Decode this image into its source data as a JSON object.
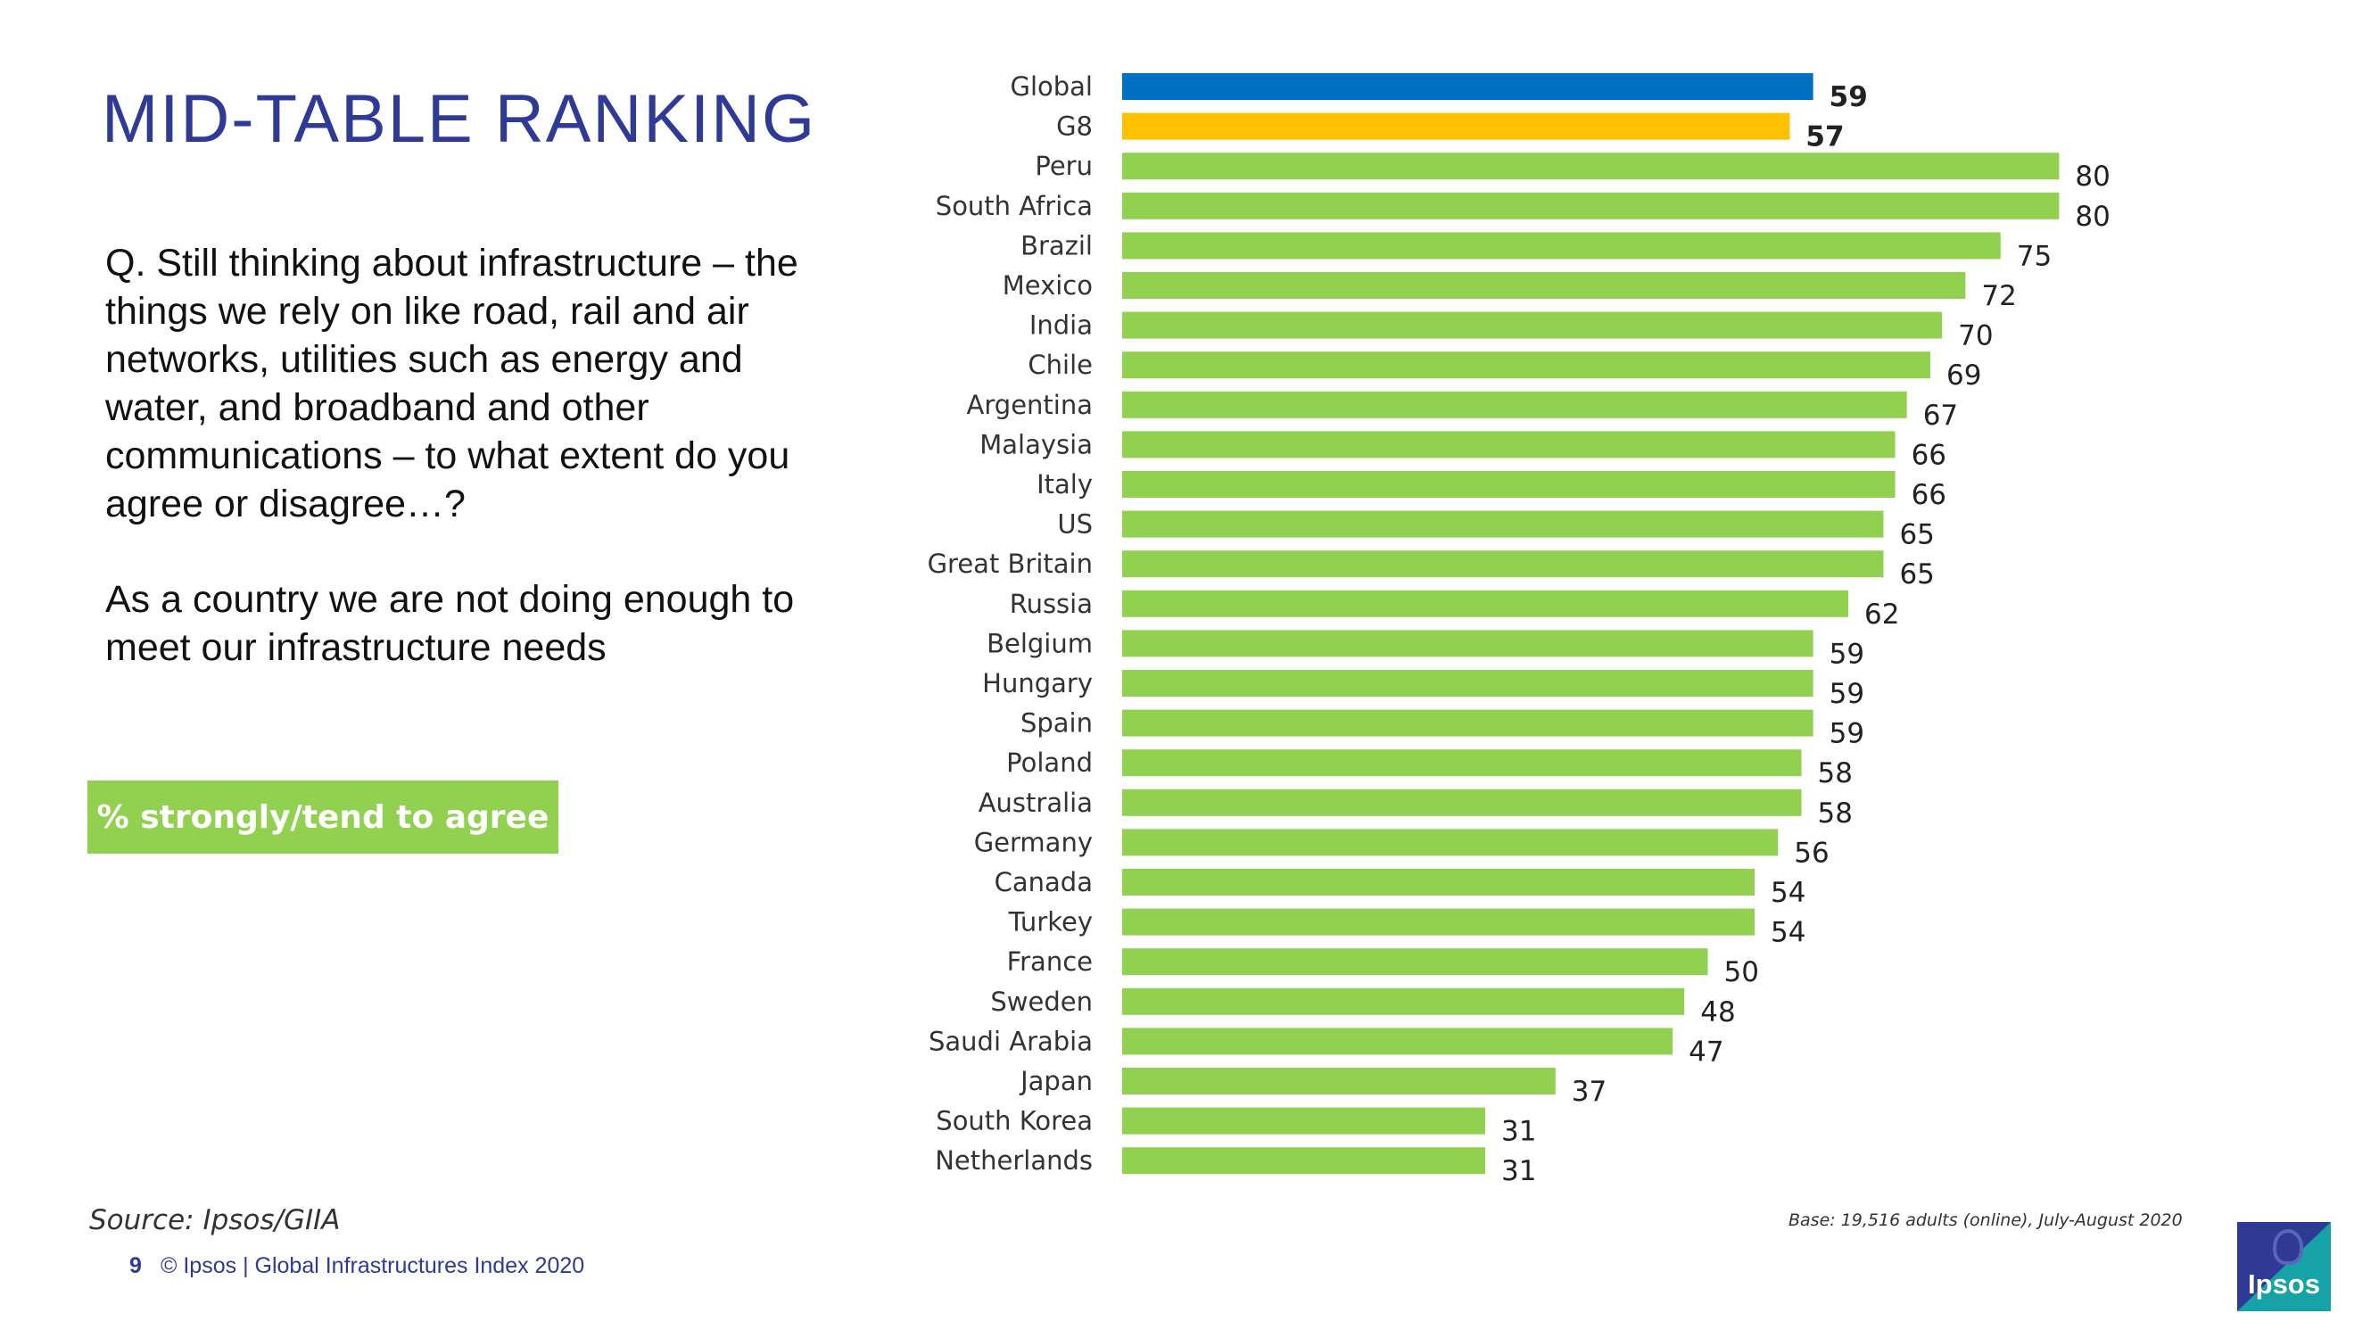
{
  "header": {
    "title": "MID-TABLE RANKING"
  },
  "question": {
    "text": "Q. Still thinking about infrastructure – the things we rely on like road, rail and air networks, utilities such as energy and water, and broadband and other communications – to what extent do you agree or disagree…?",
    "statement": "As a country we are not doing enough to meet our infrastructure needs"
  },
  "badge": {
    "label": "% strongly/tend to agree"
  },
  "footer": {
    "source": "Source: Ipsos/GIIA",
    "page_number": "9",
    "copyright": "© Ipsos | Global Infrastructures Index 2020",
    "base": "Base: 19,516 adults (online), July-August 2020",
    "logo_text": "Ipsos"
  },
  "colors": {
    "title": "#2f3a96",
    "global": "#0070c0",
    "g8": "#ffc000",
    "country": "#92d050"
  },
  "chart_data": {
    "type": "bar",
    "orientation": "horizontal",
    "title": "",
    "xlabel": "",
    "ylabel": "",
    "xlim": [
      0,
      100
    ],
    "grid": false,
    "categories": [
      "Global",
      "G8",
      "Peru",
      "South Africa",
      "Brazil",
      "Mexico",
      "India",
      "Chile",
      "Argentina",
      "Malaysia",
      "Italy",
      "US",
      "Great Britain",
      "Russia",
      "Belgium",
      "Hungary",
      "Spain",
      "Poland",
      "Australia",
      "Germany",
      "Canada",
      "Turkey",
      "France",
      "Sweden",
      "Saudi Arabia",
      "Japan",
      "South Korea",
      "Netherlands"
    ],
    "values": [
      59,
      57,
      80,
      80,
      75,
      72,
      70,
      69,
      67,
      66,
      66,
      65,
      65,
      62,
      59,
      59,
      59,
      58,
      58,
      56,
      54,
      54,
      50,
      48,
      47,
      37,
      31,
      31
    ],
    "bar_colors": [
      "global",
      "g8",
      "country",
      "country",
      "country",
      "country",
      "country",
      "country",
      "country",
      "country",
      "country",
      "country",
      "country",
      "country",
      "country",
      "country",
      "country",
      "country",
      "country",
      "country",
      "country",
      "country",
      "country",
      "country",
      "country",
      "country",
      "country",
      "country"
    ],
    "bold_labels": [
      true,
      true,
      false,
      false,
      false,
      false,
      false,
      false,
      false,
      false,
      false,
      false,
      false,
      false,
      false,
      false,
      false,
      false,
      false,
      false,
      false,
      false,
      false,
      false,
      false,
      false,
      false,
      false
    ]
  }
}
